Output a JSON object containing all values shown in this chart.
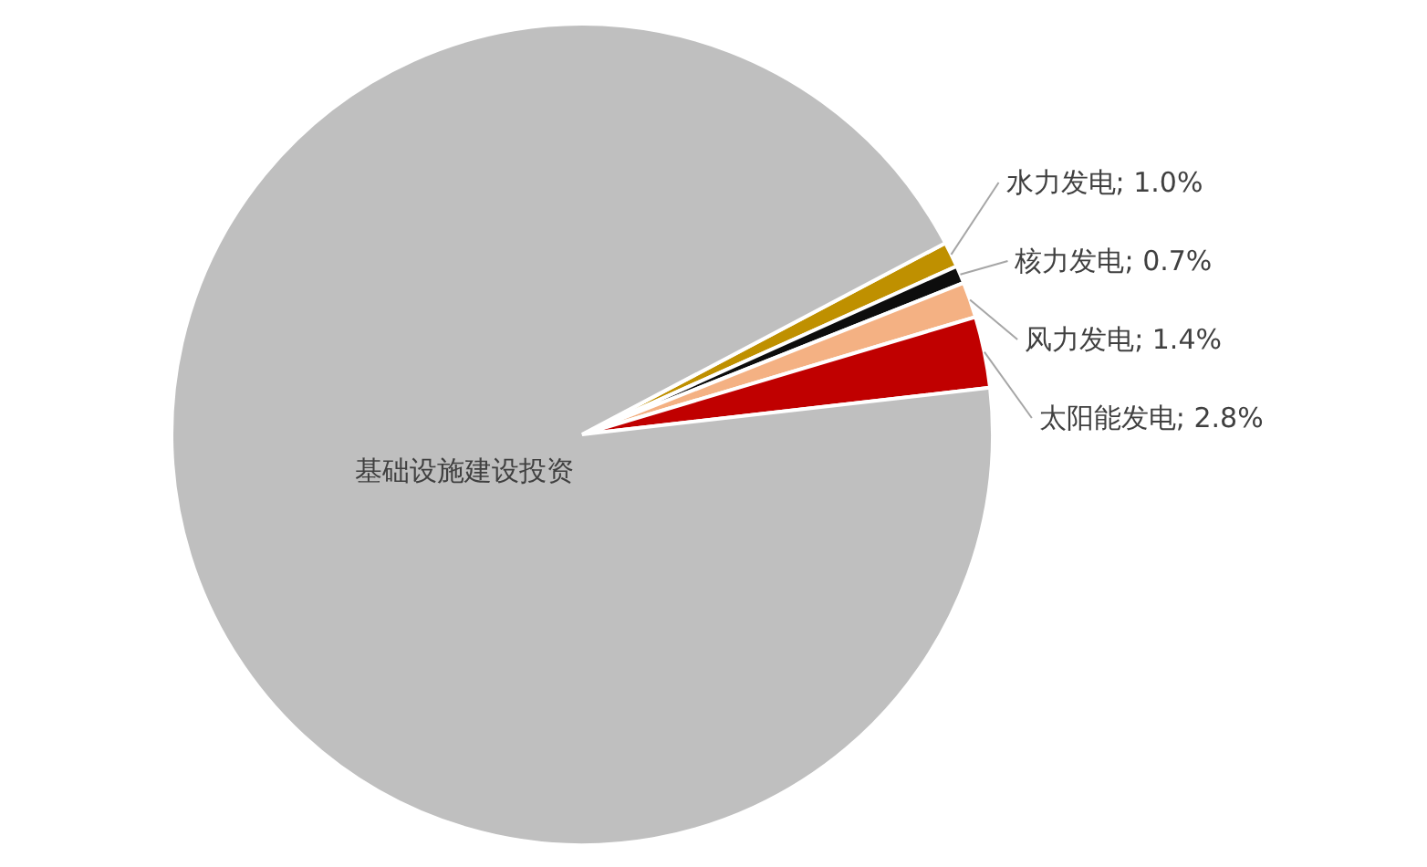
{
  "chart_data": {
    "type": "pie",
    "categories": [
      "水力发电",
      "核力发电",
      "风力发电",
      "太阳能发电",
      "基础设施建设投资"
    ],
    "values": [
      1.0,
      0.7,
      1.4,
      2.8,
      94.1
    ],
    "colors": [
      "#bf9000",
      "#0d0d0d",
      "#f4b183",
      "#c00000",
      "#bfbfbf"
    ],
    "value_labels": [
      "1.0%",
      "0.7%",
      "1.4%",
      "2.8%",
      null
    ]
  }
}
